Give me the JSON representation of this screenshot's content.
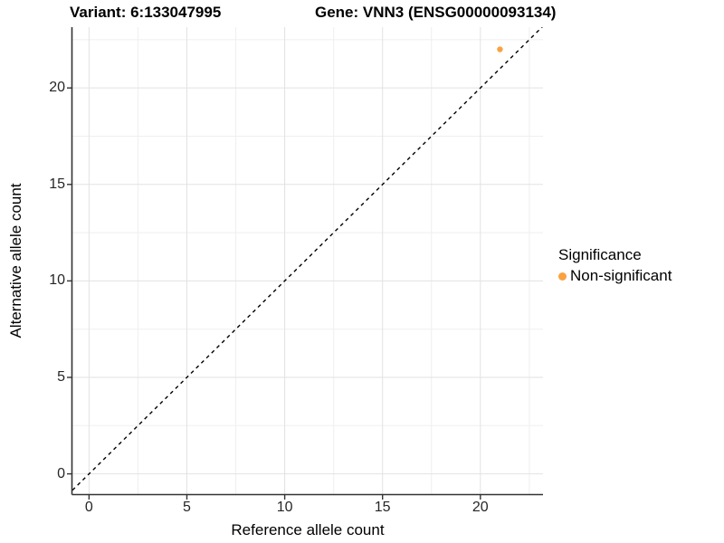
{
  "chart_data": {
    "type": "scatter",
    "title_left": "Variant: 6:133047995",
    "title_right": "Gene: VNN3 (ENSG00000093134)",
    "xlabel": "Reference allele count",
    "ylabel": "Alternative allele count",
    "xlim": [
      -0.85,
      23.2
    ],
    "ylim": [
      -1.05,
      23.15
    ],
    "x_ticks": [
      0,
      5,
      10,
      15,
      20
    ],
    "y_ticks": [
      0,
      5,
      10,
      15,
      20
    ],
    "x_minor_gridlines": [
      2.5,
      7.5,
      12.5,
      17.5,
      22.5
    ],
    "y_minor_gridlines": [
      2.5,
      7.5,
      12.5,
      17.5,
      22.5
    ],
    "grid": "on",
    "reference_line": {
      "equation": "y = x",
      "style": "dashed",
      "color": "#000000"
    },
    "series": [
      {
        "name": "Non-significant",
        "color": "#F9A242",
        "points": [
          {
            "x": 21,
            "y": 22
          }
        ]
      }
    ],
    "legend": {
      "title": "Significance",
      "position": "right",
      "entries": [
        {
          "label": "Non-significant",
          "color": "#F9A242"
        }
      ]
    },
    "colors": {
      "major_grid": "#E2E2E2",
      "minor_grid": "#EFEFEF",
      "axis_line": "#333333",
      "tick_text": "#262626",
      "background": "#FFFFFF"
    }
  }
}
